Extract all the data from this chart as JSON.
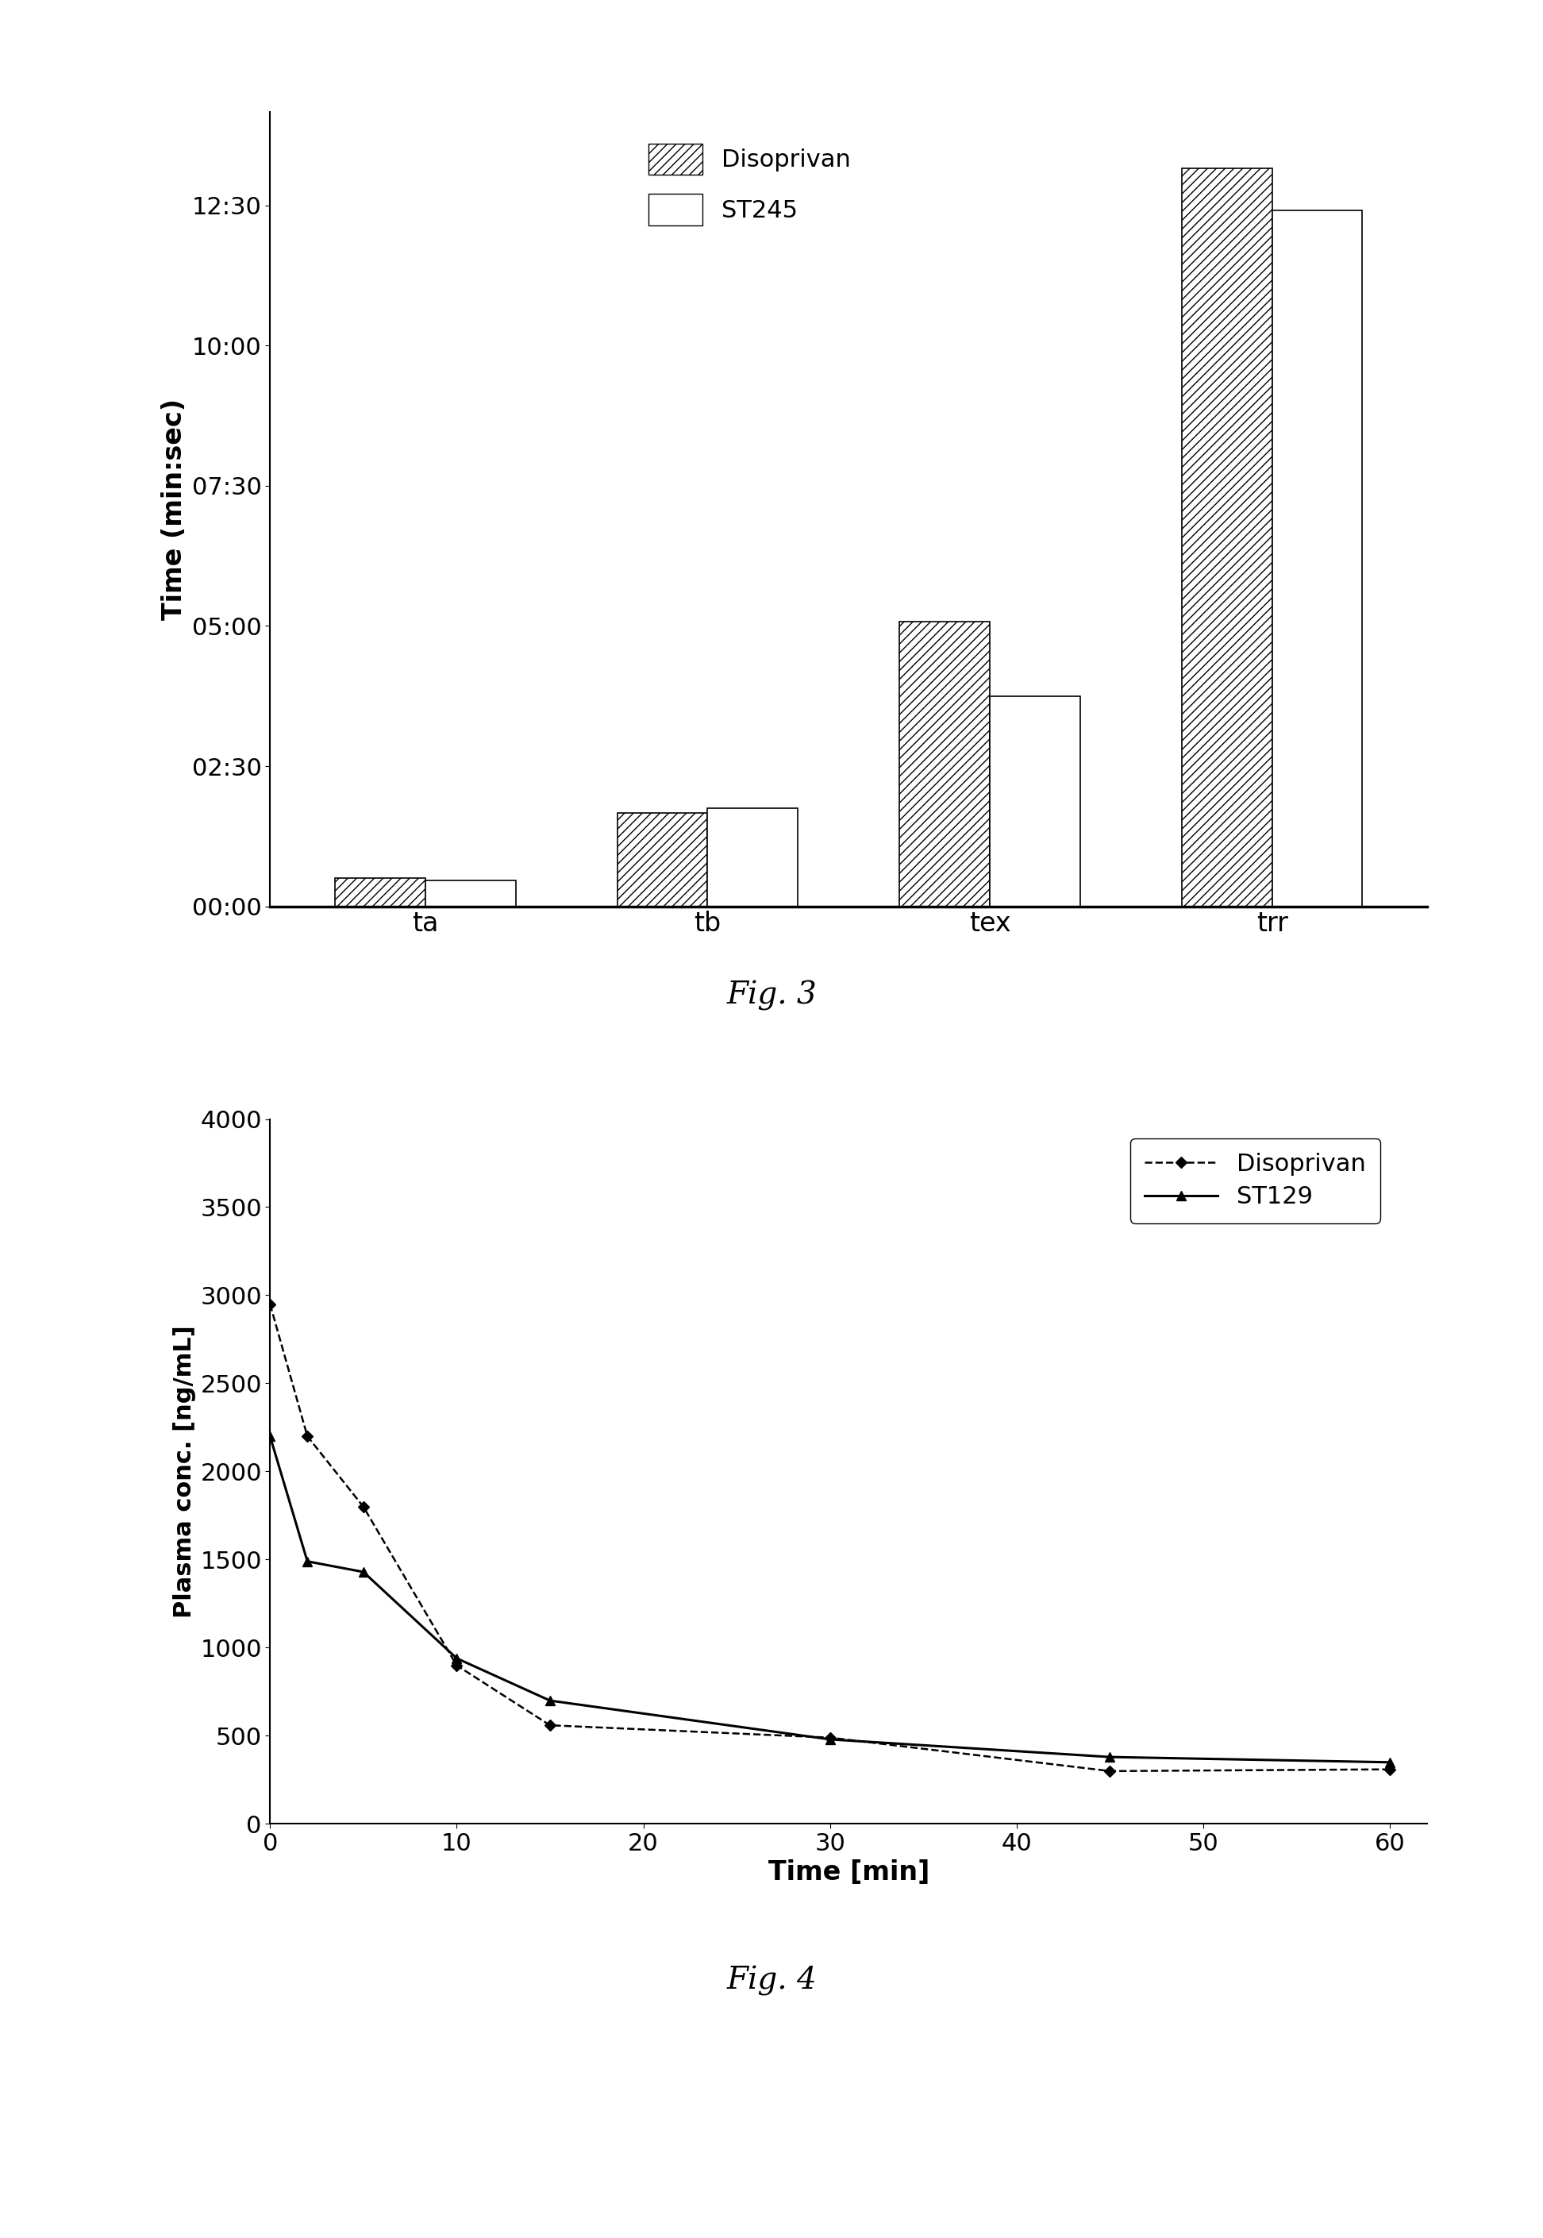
{
  "fig3": {
    "categories": [
      "ta",
      "tb",
      "tex",
      "trr"
    ],
    "disoprivan_sec": [
      30,
      100,
      305,
      790
    ],
    "st245_sec": [
      28,
      105,
      225,
      745
    ],
    "ylabel": "Time (min:sec)",
    "yticks_sec": [
      0,
      150,
      300,
      450,
      600,
      750
    ],
    "ytick_labels": [
      "00:00",
      "02:30",
      "05:00",
      "07:30",
      "10:00",
      "12:30"
    ],
    "ylim_sec": 850,
    "legend_disoprivan": "Disoprivan",
    "legend_st245": "ST245",
    "fig_caption": "Fig. 3",
    "bar_width": 0.32
  },
  "fig4": {
    "xlabel": "Time [min]",
    "ylabel": "Plasma conc. [ng/mL]",
    "fig_caption": "Fig. 4",
    "disoprivan_x": [
      0,
      2,
      5,
      10,
      15,
      30,
      45,
      60
    ],
    "disoprivan_y": [
      2950,
      2200,
      1800,
      900,
      560,
      490,
      300,
      310
    ],
    "st129_x": [
      0,
      2,
      5,
      10,
      15,
      30,
      45,
      60
    ],
    "st129_y": [
      2200,
      1490,
      1430,
      940,
      700,
      480,
      380,
      350
    ],
    "ylim": [
      0,
      4000
    ],
    "xlim": [
      0,
      62
    ],
    "yticks": [
      0,
      500,
      1000,
      1500,
      2000,
      2500,
      3000,
      3500,
      4000
    ],
    "xticks": [
      0,
      10,
      20,
      30,
      40,
      50,
      60
    ],
    "legend_disoprivan": "Disoprivan",
    "legend_st129": "ST129"
  },
  "background_color": "#ffffff",
  "text_color": "#000000"
}
